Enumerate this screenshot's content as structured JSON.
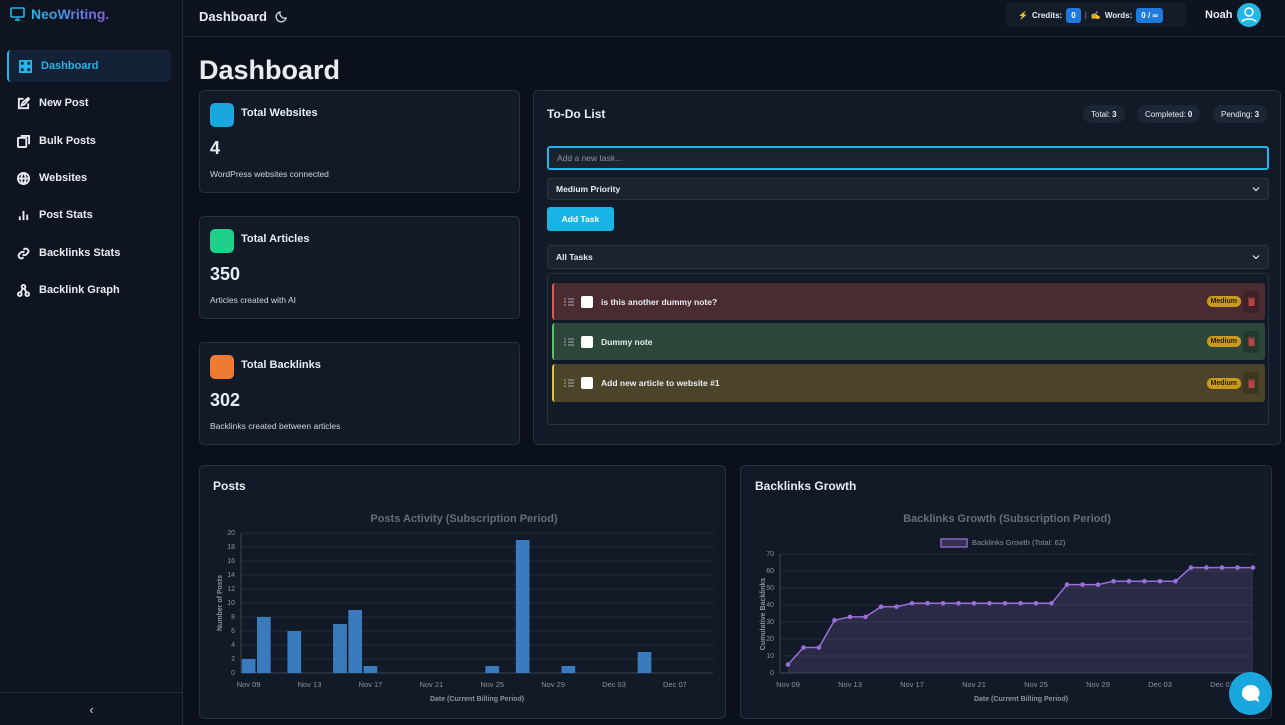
{
  "brand": "NeoWriting.",
  "nav": [
    "Dashboard",
    "New Post",
    "Bulk Posts",
    "Websites",
    "Post Stats",
    "Backlinks Stats",
    "Backlink Graph"
  ],
  "header": {
    "title": "Dashboard",
    "credits_label": "Credits:",
    "credits": 0,
    "words_label": "Words:",
    "words": "0 / ∞",
    "user": "Noah"
  },
  "page_title": "Dashboard",
  "stats": [
    {
      "title": "Total Websites",
      "value": 4,
      "caption": "WordPress websites connected"
    },
    {
      "title": "Total Articles",
      "value": 350,
      "caption": "Articles created with AI"
    },
    {
      "title": "Total Backlinks",
      "value": 302,
      "caption": "Backlinks created between articles"
    }
  ],
  "todo": {
    "title": "To-Do List",
    "total_label": "Total:",
    "total": 3,
    "completed_label": "Completed:",
    "completed": 0,
    "pending_label": "Pending:",
    "pending": 3,
    "placeholder": "Add a new task...",
    "priority": "Medium Priority",
    "button": "Add Task",
    "filter": "All Tasks",
    "tasks": [
      {
        "text": "is this another dummy note?",
        "priority": "Medium"
      },
      {
        "text": "Dummy note",
        "priority": "Medium"
      },
      {
        "text": "Add new article to website #1",
        "priority": "Medium"
      }
    ]
  },
  "panels": [
    "Posts",
    "Backlinks Growth"
  ],
  "chart_data": [
    {
      "type": "bar",
      "title": "Posts Activity (Subscription Period)",
      "x_label": "Date (Current Billing Period)",
      "y_label": "Number of Posts",
      "categories": [
        "Nov 09",
        null,
        null,
        null,
        "Nov 13",
        null,
        null,
        null,
        "Nov 17",
        null,
        null,
        null,
        "Nov 21",
        null,
        null,
        null,
        "Nov 25",
        null,
        null,
        null,
        "Nov 29",
        null,
        null,
        null,
        "Dec 03",
        null,
        null,
        null,
        "Dec 07",
        null,
        null
      ],
      "values": [
        2,
        8,
        0,
        6,
        0,
        0,
        7,
        9,
        1,
        0,
        0,
        0,
        0,
        0,
        0,
        0,
        1,
        0,
        19,
        0,
        0,
        1,
        0,
        0,
        0,
        0,
        3,
        0,
        0,
        0,
        0
      ],
      "color": "#3a7bbd",
      "ylim": [
        0,
        20
      ],
      "yticks": [
        0,
        2,
        4,
        6,
        8,
        10,
        12,
        14,
        16,
        18,
        20
      ],
      "grid": true
    },
    {
      "type": "line",
      "title": "Backlinks Growth (Subscription Period)",
      "x_label": "Date (Current Billing Period)",
      "y_label": "Cumulative Backlinks",
      "categories": [
        "Nov 09",
        null,
        null,
        null,
        "Nov 13",
        null,
        null,
        null,
        "Nov 17",
        null,
        null,
        null,
        "Nov 21",
        null,
        null,
        null,
        "Nov 25",
        null,
        null,
        null,
        "Nov 29",
        null,
        null,
        null,
        "Dec 03",
        null,
        null,
        null,
        "Dec 07",
        null,
        null
      ],
      "series": [
        {
          "name": "Backlinks Growth (Total: 62)",
          "color": "#9b6fd6",
          "values": [
            5,
            15,
            15,
            31,
            33,
            33,
            39,
            39,
            41,
            41,
            41,
            41,
            41,
            41,
            41,
            41,
            41,
            41,
            52,
            52,
            52,
            54,
            54,
            54,
            54,
            54,
            62,
            62,
            62,
            62,
            62
          ]
        }
      ],
      "ylim": [
        0,
        70
      ],
      "yticks": [
        0,
        10,
        20,
        30,
        40,
        50,
        60,
        70
      ],
      "grid": true,
      "legend": "top"
    }
  ]
}
